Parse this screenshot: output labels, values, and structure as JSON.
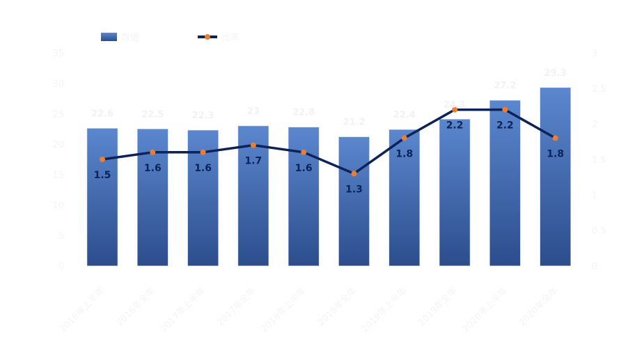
{
  "chart_data": {
    "type": "bar+line",
    "title": "",
    "categories": [
      "2016年上半年",
      "2016年全年",
      "2017年上半年",
      "2017年全年",
      "2018年上半年",
      "2018年全年",
      "2019年上半年",
      "2019年全年",
      "2020年上半年",
      "2020年全年"
    ],
    "series": [
      {
        "name": "数值",
        "type": "bar",
        "axis": "left",
        "values": [
          22.6,
          22.5,
          22.3,
          23.0,
          22.8,
          21.2,
          22.4,
          24.1,
          27.2,
          29.3
        ]
      },
      {
        "name": "比率",
        "type": "line",
        "axis": "right",
        "values": [
          1.5,
          1.6,
          1.6,
          1.7,
          1.6,
          1.3,
          1.8,
          2.2,
          2.2,
          1.8
        ]
      }
    ],
    "ylim_left": [
      0,
      35
    ],
    "yticks_left": [
      "0",
      "5",
      "10",
      "15",
      "20",
      "25",
      "30",
      "35"
    ],
    "ylim_right": [
      0,
      3
    ],
    "yticks_right": [
      "0",
      "0.5",
      "1",
      "1.5",
      "2",
      "2.5",
      "3"
    ],
    "legend": "top-left",
    "grid": false,
    "colors": {
      "bar_top": "#5b87cf",
      "bar_bottom": "#2c4d8c",
      "line": "#0b2357",
      "marker": "#ed7d31"
    }
  }
}
